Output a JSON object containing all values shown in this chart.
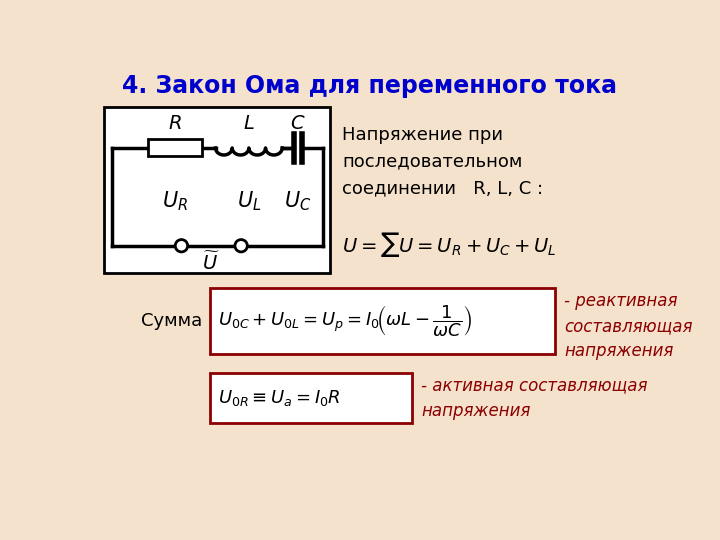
{
  "title": "4. Закон Ома для переменного тока",
  "title_color": "#0000cc",
  "title_fontsize": 17,
  "bg_color": "#f5e2cc",
  "text_right_top": "Напряжение при\nпоследовательном\nсоединении   R, L, C :",
  "formula_main": "$U = \\sum U = U_R + U_C + U_L$",
  "label_summa": "Сумма",
  "formula_reactive_label": "- реактивная\nсоставляющая\nнапряжения",
  "formula_active_label": "- активная составляющая\nнапряжения",
  "box_color": "#8b0000"
}
